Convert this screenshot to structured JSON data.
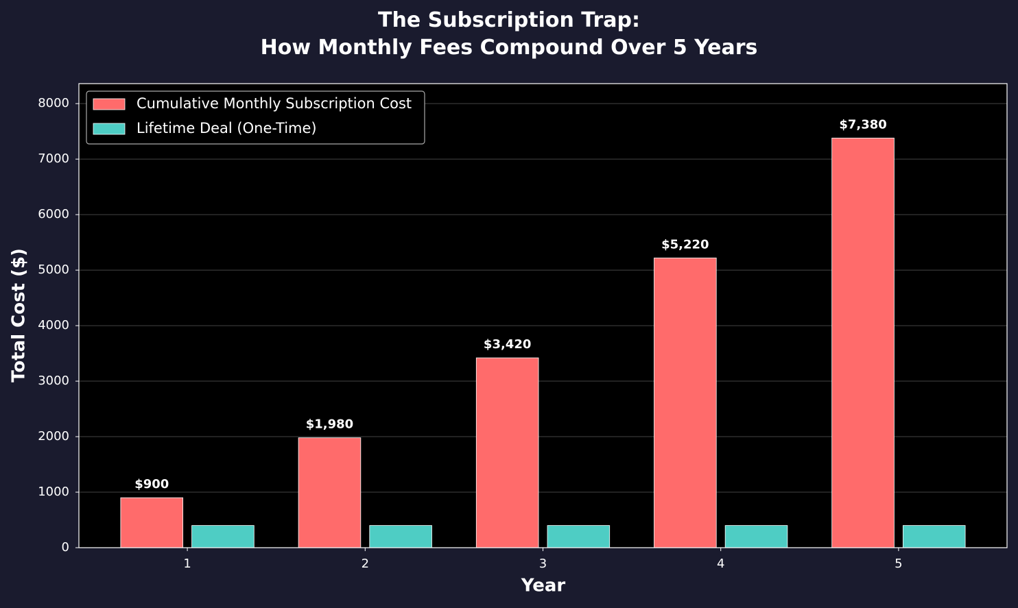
{
  "chart_data": {
    "type": "bar",
    "title": "The Subscription Trap:\nHow Monthly Fees Compound Over 5 Years",
    "x_label": "Year",
    "y_label": "Total Cost ($)",
    "categories": [
      "1",
      "2",
      "3",
      "4",
      "5"
    ],
    "series": [
      {
        "name": "Cumulative Monthly Subscription Cost",
        "color": "#ff6b6b",
        "values": [
          900,
          1980,
          3420,
          5220,
          7380
        ],
        "value_labels": [
          "$900",
          "$1,980",
          "$3,420",
          "$5,220",
          "$7,380"
        ]
      },
      {
        "name": "Lifetime Deal (One-Time)",
        "color": "#4ecdc4",
        "values": [
          400,
          400,
          400,
          400,
          400
        ]
      }
    ],
    "ylim": [
      0,
      8360
    ],
    "yticks": [
      0,
      1000,
      2000,
      3000,
      4000,
      5000,
      6000,
      7000,
      8000
    ],
    "grid": true,
    "legend": "upper left"
  }
}
